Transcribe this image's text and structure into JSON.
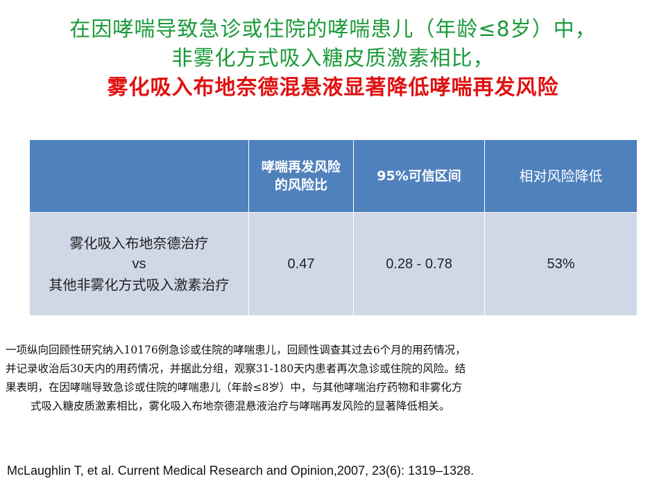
{
  "title": {
    "line1": "在因哮喘导致急诊或住院的哮喘患儿（年龄≤8岁）中，",
    "line2": "非雾化方式吸入糖皮质激素相比，",
    "line3": "雾化吸入布地奈德混悬液显著降低哮喘再发风险"
  },
  "table": {
    "headers": {
      "col0": "",
      "col1": "哮喘再发风险的风险比",
      "col2": "95%可信区间",
      "col3": "相对风险降低"
    },
    "row": {
      "treatment_line1": "雾化吸入布地奈德治疗",
      "treatment_vs": "vs",
      "treatment_line2": "其他非雾化方式吸入激素治疗",
      "hazard_ratio": "0.47",
      "ci": "0.28 - 0.78",
      "rrr": "53%"
    }
  },
  "summary": {
    "line1": "一项纵向回顾性研究纳入10176例急诊或住院的哮喘患儿，回顾性调查其过去6个月的用药情况，",
    "line2": "并记录收治后30天内的用药情况，并据此分组，观察31-180天内患者再次急诊或住院的风险。结",
    "line3": "果表明，在因哮喘导致急诊或住院的哮喘患儿（年龄≤8岁）中，与其他哮喘治疗药物和非雾化方",
    "line4": "式吸入糖皮质激素相比，雾化吸入布地奈德混悬液治疗与哮喘再发风险的显著降低相关。"
  },
  "reference": "McLaughlin T, et al. Current Medical Research and Opinion,2007, 23(6): 1319–1328.",
  "colors": {
    "title_green": "#1c9a3a",
    "title_red": "#e01010",
    "header_bg": "#4f81bd",
    "body_bg": "#d0d8e8",
    "highlight_red": "#e01010"
  }
}
